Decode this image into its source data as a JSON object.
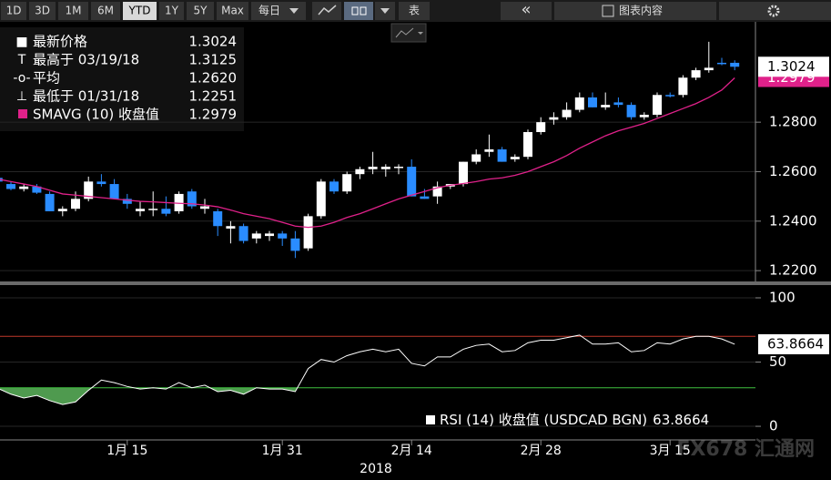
{
  "toolbar": {
    "ranges": [
      "1D",
      "3D",
      "1M",
      "6M",
      "YTD",
      "1Y",
      "5Y",
      "Max"
    ],
    "active": 4,
    "period": "每日",
    "table": "表",
    "collapse": "«",
    "content": "图表内容"
  },
  "watermark": "FX678 汇通网",
  "chart_data": [
    {
      "type": "candlestick",
      "categories": [
        null,
        null,
        null,
        null,
        null,
        null,
        null,
        null,
        null,
        null,
        "1月 15",
        null,
        null,
        null,
        null,
        null,
        null,
        null,
        null,
        null,
        null,
        null,
        "1月 31",
        null,
        null,
        null,
        null,
        null,
        null,
        null,
        null,
        null,
        "2月 14",
        null,
        null,
        null,
        null,
        null,
        null,
        null,
        null,
        null,
        "2月 28",
        null,
        null,
        null,
        null,
        null,
        null,
        null,
        null,
        null,
        "3月 15",
        null,
        null,
        null,
        null,
        null
      ],
      "xlabel": "2018",
      "open": [
        1.2575,
        1.255,
        1.253,
        1.254,
        1.251,
        1.244,
        1.245,
        1.249,
        1.256,
        1.255,
        1.249,
        1.244,
        1.245,
        1.245,
        1.244,
        1.252,
        1.245,
        1.244,
        1.237,
        1.238,
        1.233,
        1.234,
        1.235,
        1.233,
        1.229,
        1.242,
        1.256,
        1.252,
        1.259,
        1.261,
        1.261,
        1.2615,
        1.262,
        1.25,
        1.25,
        1.254,
        1.255,
        1.264,
        1.268,
        1.269,
        1.265,
        1.266,
        1.276,
        1.281,
        1.282,
        1.285,
        1.29,
        1.286,
        1.288,
        1.287,
        1.282,
        1.283,
        1.291,
        1.291,
        1.298,
        1.301,
        1.304,
        1.304
      ],
      "high": [
        1.259,
        1.256,
        1.255,
        1.255,
        1.252,
        1.246,
        1.252,
        1.258,
        1.259,
        1.257,
        1.251,
        1.248,
        1.252,
        1.25,
        1.252,
        1.253,
        1.249,
        1.245,
        1.24,
        1.239,
        1.236,
        1.236,
        1.236,
        1.236,
        1.243,
        1.257,
        1.257,
        1.26,
        1.262,
        1.268,
        1.263,
        1.263,
        1.265,
        1.253,
        1.256,
        1.255,
        1.264,
        1.269,
        1.275,
        1.27,
        1.267,
        1.277,
        1.282,
        1.284,
        1.288,
        1.292,
        1.292,
        1.292,
        1.29,
        1.288,
        1.284,
        1.292,
        1.292,
        1.299,
        1.302,
        1.3125,
        1.306,
        1.305
      ],
      "low": [
        1.2555,
        1.2525,
        1.252,
        1.251,
        1.244,
        1.242,
        1.244,
        1.248,
        1.254,
        1.249,
        1.245,
        1.242,
        1.242,
        1.242,
        1.243,
        1.245,
        1.243,
        1.234,
        1.231,
        1.231,
        1.231,
        1.232,
        1.23,
        1.2251,
        1.228,
        1.241,
        1.251,
        1.251,
        1.257,
        1.259,
        1.258,
        1.259,
        1.25,
        1.249,
        1.247,
        1.253,
        1.254,
        1.263,
        1.266,
        1.264,
        1.264,
        1.265,
        1.275,
        1.279,
        1.281,
        1.284,
        1.286,
        1.285,
        1.286,
        1.281,
        1.281,
        1.282,
        1.29,
        1.29,
        1.297,
        1.3,
        1.303,
        1.301
      ],
      "close": [
        1.256,
        1.253,
        1.254,
        1.2515,
        1.244,
        1.245,
        1.249,
        1.256,
        1.255,
        1.249,
        1.247,
        1.245,
        1.245,
        1.243,
        1.251,
        1.246,
        1.246,
        1.238,
        1.238,
        1.232,
        1.235,
        1.235,
        1.233,
        1.228,
        1.242,
        1.256,
        1.252,
        1.259,
        1.261,
        1.262,
        1.262,
        1.262,
        1.25,
        1.249,
        1.254,
        1.255,
        1.264,
        1.267,
        1.269,
        1.264,
        1.266,
        1.276,
        1.28,
        1.282,
        1.285,
        1.29,
        1.286,
        1.287,
        1.287,
        1.282,
        1.283,
        1.291,
        1.2905,
        1.298,
        1.301,
        1.302,
        1.3035,
        1.3024
      ],
      "up_color": "#ffffff",
      "down_color": "#2a8cff",
      "series": [
        {
          "name": "SMAVG (10) 收盘值",
          "color": "#e0218a",
          "values": [
            1.257,
            1.256,
            1.255,
            1.254,
            1.2525,
            1.251,
            1.2505,
            1.25,
            1.2495,
            1.249,
            1.2485,
            1.248,
            1.2478,
            1.2475,
            1.2472,
            1.247,
            1.2465,
            1.2458,
            1.2445,
            1.243,
            1.242,
            1.241,
            1.2395,
            1.238,
            1.2375,
            1.238,
            1.2395,
            1.2415,
            1.243,
            1.245,
            1.247,
            1.249,
            1.2505,
            1.252,
            1.2535,
            1.2545,
            1.2552,
            1.256,
            1.257,
            1.2575,
            1.2585,
            1.26,
            1.262,
            1.264,
            1.2665,
            1.2695,
            1.272,
            1.2745,
            1.2765,
            1.278,
            1.2795,
            1.2815,
            1.2835,
            1.2855,
            1.2875,
            1.29,
            1.293,
            1.2979
          ]
        }
      ],
      "stats": [
        {
          "label": "最新价格",
          "value": 1.3024
        },
        {
          "label": "最高于 03/19/18",
          "value": 1.3125
        },
        {
          "label": "平均",
          "value": 1.262,
          "value_label": "1.2620"
        },
        {
          "label": "最低于 01/31/18",
          "value": 1.2251
        }
      ],
      "ylim": [
        1.216,
        1.3176
      ],
      "yticks": [
        {
          "value": 1.22,
          "label": "1.2200"
        },
        {
          "value": 1.24,
          "label": "1.2400"
        },
        {
          "value": 1.26,
          "label": "1.2600"
        },
        {
          "value": 1.28,
          "label": "1.2800"
        }
      ],
      "grid": true
    },
    {
      "type": "line",
      "series": [
        {
          "name": "RSI (14) 收盘值 (USDCAD BGN)",
          "color": "#ffffff",
          "values": [
            29.5,
            25,
            22,
            24,
            20,
            17,
            19,
            28,
            36,
            34,
            31,
            29,
            30,
            29,
            34,
            30,
            32,
            27,
            28,
            25,
            30,
            29,
            29,
            27,
            45,
            52,
            50,
            55,
            58,
            60,
            58,
            60,
            49,
            47,
            54,
            54,
            60,
            63,
            64,
            58,
            59,
            65,
            67,
            67,
            69,
            71,
            64,
            64,
            65,
            58,
            59,
            65,
            64,
            68,
            70,
            70,
            68,
            63.8664
          ]
        }
      ],
      "hlines": [
        {
          "value": 70,
          "color": "#c0392b"
        },
        {
          "value": 30,
          "color": "#3fbf3f"
        }
      ],
      "fill_below": {
        "value": 30,
        "color": "#4f9a4f"
      },
      "ylim": [
        -10.6,
        108.5
      ],
      "yticks": [
        0,
        50,
        100
      ],
      "grid": true
    }
  ]
}
